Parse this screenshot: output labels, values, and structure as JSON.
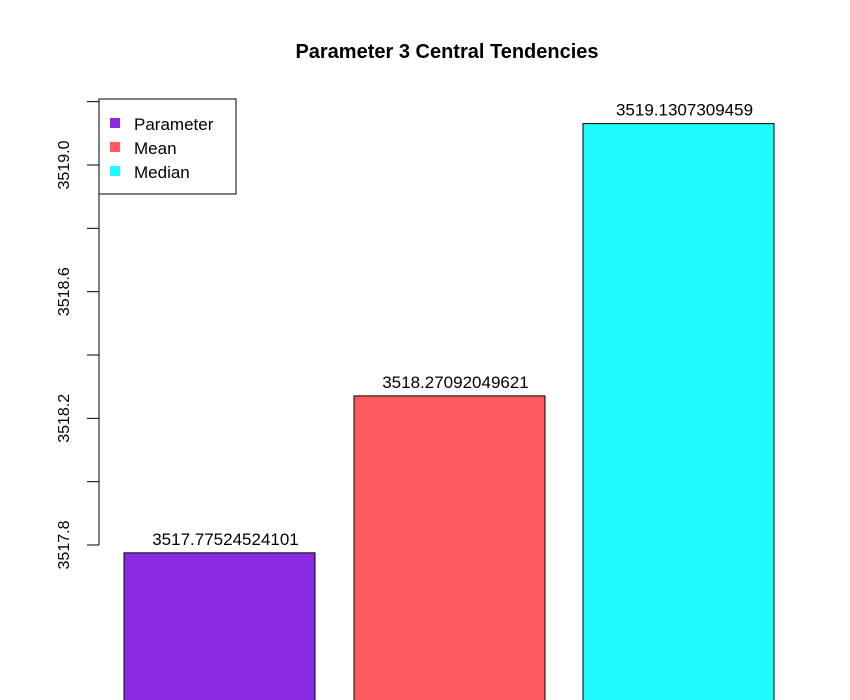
{
  "chart_data": {
    "type": "bar",
    "title": "Parameter 3 Central Tendencies",
    "xlabel": "",
    "ylabel": "",
    "categories": [
      "Parameter",
      "Mean",
      "Median"
    ],
    "values": [
      3517.77524524101,
      3518.27092049621,
      3519.1307309459
    ],
    "value_labels": [
      "3517.77524524101",
      "3518.27092049621",
      "3519.1307309459"
    ],
    "colors": [
      "#8a2be2",
      "#ff5a5f",
      "#1efcff"
    ],
    "y_ticks": [
      3517.8,
      3518.2,
      3518.6,
      3519.0
    ],
    "y_tick_labels": [
      "3517.8",
      "3518.2",
      "3518.6",
      "3519.0"
    ],
    "y_minor_ticks": [
      3517.8,
      3518.0,
      3518.2,
      3518.4,
      3518.6,
      3518.8,
      3519.0,
      3519.2
    ],
    "ylim": [
      3517.8,
      3519.2
    ],
    "legend": {
      "position": "top-left",
      "entries": [
        {
          "label": "Parameter",
          "color": "#8a2be2"
        },
        {
          "label": "Mean",
          "color": "#ff5a5f"
        },
        {
          "label": "Median",
          "color": "#1efcff"
        }
      ]
    },
    "grid": false
  }
}
